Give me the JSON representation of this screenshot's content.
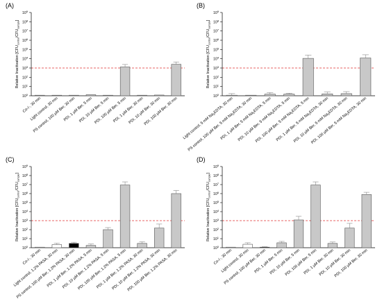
{
  "chart_data": [
    {
      "panel": "(A)",
      "type": "bar",
      "ylabel": "Relative Inactivation [CFU_control/CFU_sample]",
      "yscale": "log",
      "ylim": [
        1,
        1000000000
      ],
      "yticks": [
        "10^0",
        "10^1",
        "10^2",
        "10^3",
        "10^4",
        "10^5",
        "10^6",
        "10^7",
        "10^8",
        "10^9"
      ],
      "threshold": 1000,
      "categories": [
        "Co-/-, 30 min",
        "Light control, 30 min",
        "PS control, 100 µM Ber, 30 min",
        "PDI, 1 µM Ber, 5 min",
        "PDI, 10 µM Ber, 5 min",
        "PDI, 100 µM Ber, 5 min",
        "PDI, 1 µM Ber, 30 min",
        "PDI, 10 µM Ber, 30 min",
        "PDI, 100 µM Ber, 30 min"
      ],
      "values": [
        1,
        1,
        1,
        1.3,
        1.1,
        1300,
        1,
        1.2,
        2500
      ],
      "errors": [
        1.2,
        1,
        1,
        1.3,
        1.1,
        2400,
        1,
        1.3,
        4500
      ],
      "bar_colors": [
        "#c8c8c8",
        "#c8c8c8",
        "#c8c8c8",
        "#c8c8c8",
        "#c8c8c8",
        "#c8c8c8",
        "#c8c8c8",
        "#c8c8c8",
        "#c8c8c8"
      ]
    },
    {
      "panel": "(B)",
      "type": "bar",
      "ylabel": "Relative Inactivation [CFU_control/CFU_sample]",
      "yscale": "log",
      "ylim": [
        1,
        1000000000
      ],
      "yticks": [
        "10^0",
        "10^1",
        "10^2",
        "10^3",
        "10^4",
        "10^5",
        "10^6",
        "10^7",
        "10^8",
        "10^9"
      ],
      "threshold": 1000,
      "categories": [
        "Light control, 5 mM Na2EDTA, 30 min",
        "PS control, 100 µM Ber, 5 mM Na2EDTA, 30 min",
        "PDI, 1 µM Ber, 5 mM Na2EDTA, 5 min",
        "PDI, 10 µM Ber, 5 mM Na2EDTA, 5 min",
        "PDI, 100 µM Ber, 5 mM Na2EDTA, 5 min",
        "PDI, 1 µM Ber, 5 mM Na2EDTA, 30 min",
        "PDI, 10 µM Ber, 5 mM Na2EDTA, 30 min",
        "PDI, 100 µM Ber, 5 mM Na2EDTA, 30 min"
      ],
      "values": [
        1.1,
        1,
        1.5,
        1.5,
        11000,
        1.6,
        1.7,
        12000
      ],
      "errors": [
        1.7,
        1,
        2.2,
        1.9,
        25000,
        2.6,
        2.8,
        27000
      ],
      "bar_colors": [
        "#ffffff",
        "#c8c8c8",
        "#c8c8c8",
        "#c8c8c8",
        "#c8c8c8",
        "#c8c8c8",
        "#c8c8c8",
        "#c8c8c8"
      ]
    },
    {
      "panel": "(C)",
      "type": "bar",
      "ylabel": "Relative Inactivation [CFU_control/CFU_sample]",
      "yscale": "log",
      "ylim": [
        1,
        1000000000
      ],
      "yticks": [
        "10^0",
        "10^1",
        "10^2",
        "10^3",
        "10^4",
        "10^5",
        "10^6",
        "10^7",
        "10^8",
        "10^9"
      ],
      "threshold": 1000,
      "categories": [
        "Co-/-, 30 min",
        "Light control, 1.2% PASA, 30 min",
        "PS control, 100 µM Ber, 1.2% PASA, 30 min",
        "PDI, 1 µM Ber, 1.2% PASA, 5 min",
        "PDI, 10 µM Ber, 1.2% PASA, 5 min",
        "PDI, 100 µM Ber, 1.2% PASA, 5 min",
        "PDI, 1 µM Ber, 1.2% PASA, 30 min",
        "PDI, 10 µM Ber, 1.2% PASA, 30 min",
        "PDI, 100 µM Ber, 1.2% PASA, 30 min"
      ],
      "values": [
        1,
        2.2,
        3,
        1.8,
        100,
        9000000,
        3,
        150,
        1000000
      ],
      "errors": [
        1,
        3.2,
        4,
        2.6,
        170,
        20000000,
        4.5,
        420,
        2200000
      ],
      "bar_colors": [
        "#ffffff",
        "#ffffff",
        "#000000",
        "#c8c8c8",
        "#c8c8c8",
        "#c8c8c8",
        "#c8c8c8",
        "#c8c8c8",
        "#c8c8c8"
      ]
    },
    {
      "panel": "(D)",
      "type": "bar",
      "ylabel": "Relative Inactivation [CFU_control/CFU_sample]",
      "yscale": "log",
      "ylim": [
        1,
        1000000000
      ],
      "yticks": [
        "10^0",
        "10^1",
        "10^2",
        "10^3",
        "10^4",
        "10^5",
        "10^6",
        "10^7",
        "10^8",
        "10^9"
      ],
      "threshold": 1000,
      "categories": [
        "Co-/-, 30 min",
        "Light control, 30 min",
        "PS control, 100 µM Ber, 30 min",
        "PDI, 1 µM Ber, 5 min",
        "PDI, 10 µM Ber, 5 min",
        "PDI, 100 µM Ber, 5 min",
        "PDI, 1 µM Ber, 30 min",
        "PDI, 10 µM Ber, 30 min",
        "PDI, 100 µM Ber, 30 min"
      ],
      "values": [
        1,
        2.4,
        1.1,
        3.5,
        1200,
        9000000,
        3,
        150,
        800000
      ],
      "errors": [
        1,
        3.5,
        1.3,
        5,
        3000,
        20000000,
        4.3,
        500,
        1400000
      ],
      "bar_colors": [
        "#ffffff",
        "#ffffff",
        "#000000",
        "#c8c8c8",
        "#c8c8c8",
        "#c8c8c8",
        "#c8c8c8",
        "#c8c8c8",
        "#c8c8c8"
      ]
    }
  ],
  "style": {
    "bar_stroke": "#555555",
    "threshold_color": "#e03030",
    "axis_color": "#000000"
  }
}
